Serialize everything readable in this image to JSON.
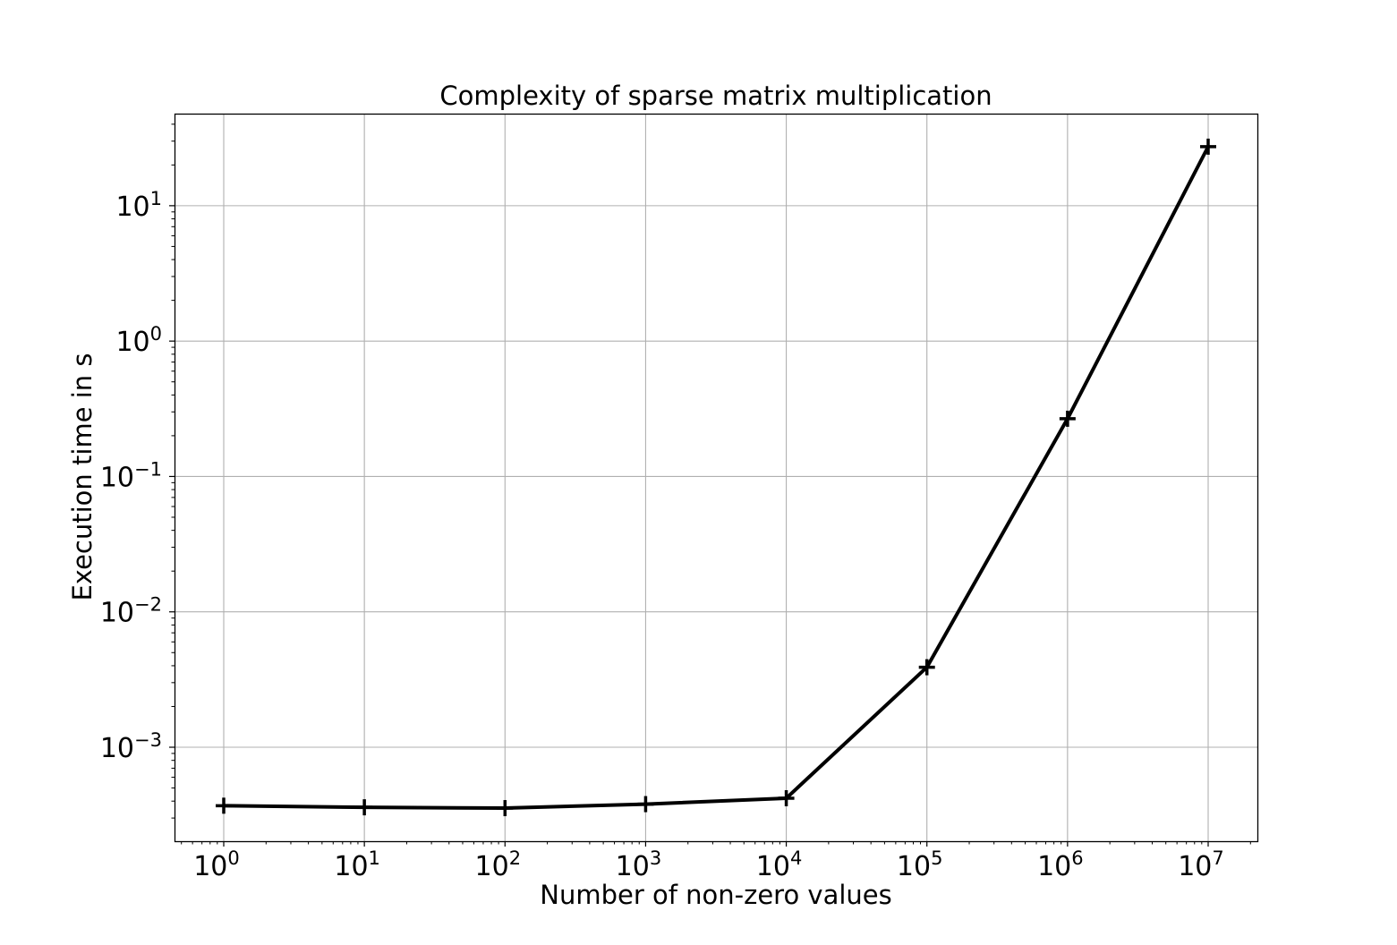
{
  "chart_data": {
    "type": "line",
    "title": "Complexity of sparse matrix multiplication",
    "xlabel": "Number of non-zero values",
    "ylabel": "Execution time in s",
    "xscale": "log",
    "yscale": "log",
    "grid": true,
    "legend": null,
    "x": [
      1,
      10,
      100,
      1000,
      10000,
      100000,
      1000000,
      10000000
    ],
    "series": [
      {
        "name": "execution time",
        "color": "#000000",
        "marker": "+",
        "values": [
          0.00037,
          0.00036,
          0.000355,
          0.00038,
          0.00042,
          0.0039,
          0.267,
          27.3
        ]
      }
    ],
    "xticks": [
      {
        "base": "10",
        "exp": "0"
      },
      {
        "base": "10",
        "exp": "1"
      },
      {
        "base": "10",
        "exp": "2"
      },
      {
        "base": "10",
        "exp": "3"
      },
      {
        "base": "10",
        "exp": "4"
      },
      {
        "base": "10",
        "exp": "5"
      },
      {
        "base": "10",
        "exp": "6"
      },
      {
        "base": "10",
        "exp": "7"
      }
    ],
    "yticks": [
      {
        "base": "10",
        "exp": "1"
      },
      {
        "base": "10",
        "exp": "0"
      },
      {
        "base": "10",
        "exp": "−1"
      },
      {
        "base": "10",
        "exp": "−2"
      },
      {
        "base": "10",
        "exp": "−3"
      }
    ],
    "xlim_log10": [
      -0.35,
      7.35
    ],
    "ylim_log10": [
      -3.694,
      1.68
    ]
  }
}
